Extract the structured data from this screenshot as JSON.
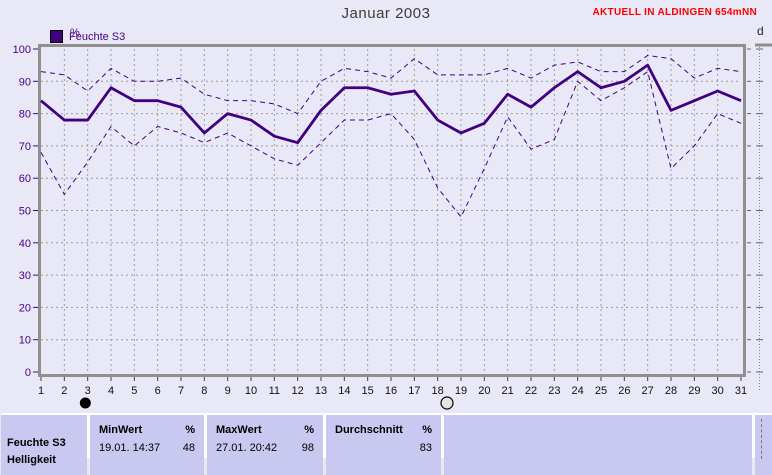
{
  "title": "Januar 2003",
  "header_right": "AKTUELL IN ALDINGEN 654mNN",
  "legend": {
    "label": "Feuchte S3",
    "swatch_color": "#400080"
  },
  "axis": {
    "y_unit": "%"
  },
  "right_panel": {
    "label": "d"
  },
  "chart_data": {
    "type": "line",
    "title": "Januar 2003",
    "ylabel": "%",
    "xlabel": "",
    "ylim": [
      0,
      100
    ],
    "y_ticks": [
      0,
      10,
      20,
      30,
      40,
      50,
      60,
      70,
      80,
      90,
      100
    ],
    "x": [
      1,
      2,
      3,
      4,
      5,
      6,
      7,
      8,
      9,
      10,
      11,
      12,
      13,
      14,
      15,
      16,
      17,
      18,
      19,
      20,
      21,
      22,
      23,
      24,
      25,
      26,
      27,
      28,
      29,
      30,
      31
    ],
    "grid": true,
    "line_color": "#400080",
    "series": [
      {
        "name": "max",
        "style": "dashed",
        "values": [
          93,
          92,
          87,
          94,
          90,
          90,
          91,
          86,
          84,
          84,
          83,
          80,
          90,
          94,
          93,
          91,
          97,
          92,
          92,
          92,
          94,
          91,
          95,
          96,
          93,
          93,
          98,
          97,
          91,
          94,
          93
        ]
      },
      {
        "name": "feuchte-s3",
        "style": "solid",
        "values": [
          84,
          78,
          78,
          88,
          84,
          84,
          82,
          74,
          80,
          78,
          73,
          71,
          81,
          88,
          88,
          86,
          87,
          78,
          74,
          77,
          86,
          82,
          88,
          93,
          88,
          90,
          95,
          81,
          84,
          87,
          84
        ]
      },
      {
        "name": "min",
        "style": "dashed",
        "values": [
          68,
          55,
          65,
          76,
          70,
          76,
          74,
          71,
          74,
          70,
          66,
          64,
          71,
          78,
          78,
          80,
          72,
          57,
          48,
          63,
          79,
          69,
          72,
          90,
          84,
          88,
          93,
          63,
          70,
          80,
          77
        ]
      }
    ],
    "moon_markers": [
      {
        "day": 2.9,
        "phase": "new-moon"
      },
      {
        "day": 18.4,
        "phase": "full-moon"
      }
    ]
  },
  "table": {
    "sensor": "Feuchte S3",
    "next_sensor_clipped": "Helligkeit",
    "columns": [
      {
        "header": "MinWert",
        "unit": "%",
        "value": "19.01.  14:37",
        "number": "48"
      },
      {
        "header": "MaxWert",
        "unit": "%",
        "value": "27.01.  20:42",
        "number": "98"
      },
      {
        "header": "Durchschnitt",
        "unit": "%",
        "value": "",
        "number": "83"
      }
    ]
  }
}
